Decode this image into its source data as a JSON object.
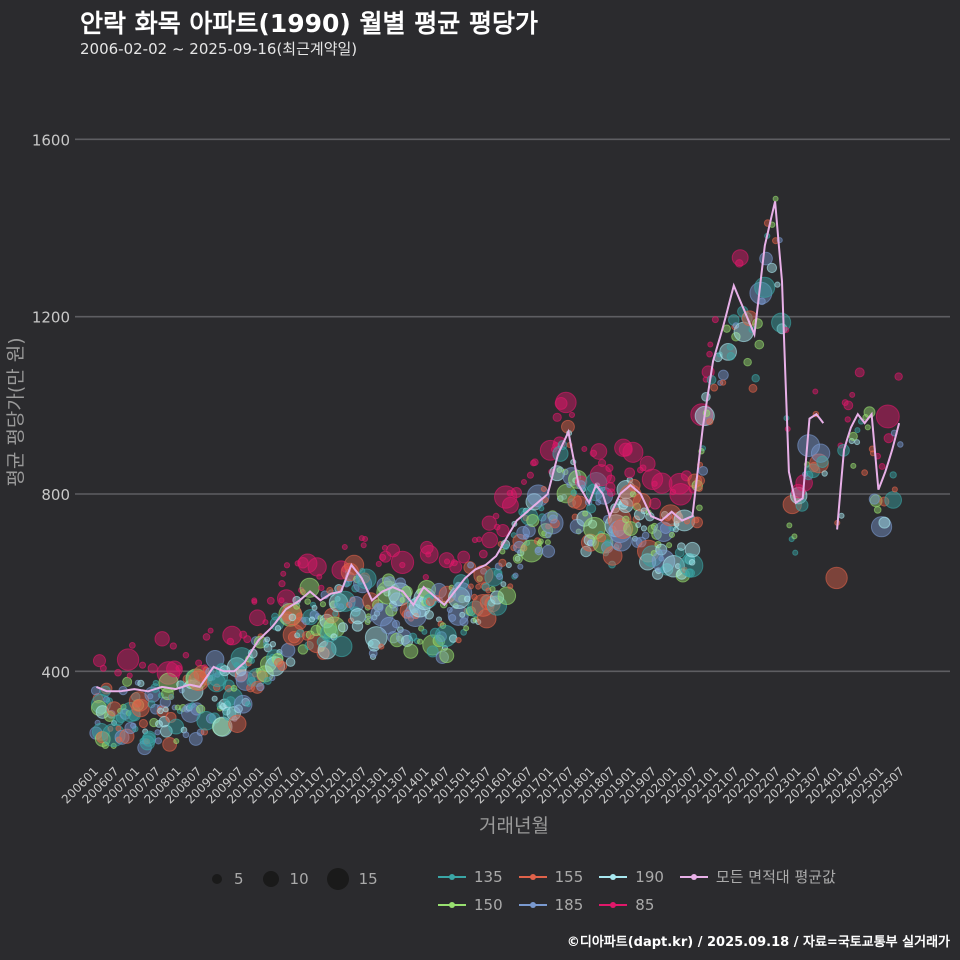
{
  "title": "안락 화목 아파트(1990) 월별 평균 평당가",
  "subtitle": "2006-02-02 ~ 2025-09-16(최근계약일)",
  "caption": "©디아파트(dapt.kr) / 2025.09.18 / 자료=국토교통부 실거래가",
  "size_legend": [
    {
      "label": "5",
      "value": 5
    },
    {
      "label": "10",
      "value": 10
    },
    {
      "label": "15",
      "value": 15
    }
  ],
  "color_legend": [
    {
      "label": "135",
      "color": "#3aa6a6"
    },
    {
      "label": "155",
      "color": "#e0624a"
    },
    {
      "label": "190",
      "color": "#a8e8f0"
    },
    {
      "label": "모든 면적대 평균값",
      "color": "#e8b0e8"
    },
    {
      "label": "150",
      "color": "#98e070"
    },
    {
      "label": "185",
      "color": "#7a9ad0"
    },
    {
      "label": "85",
      "color": "#e0186a"
    }
  ],
  "chart_data": {
    "type": "scatter+line",
    "title": "안락 화목 아파트(1990) 월별 평균 평당가",
    "xlabel": "거래년월",
    "ylabel": "평균 평당가(만 원)",
    "ylim": [
      200,
      1700
    ],
    "yticks": [
      400,
      800,
      1200,
      1600
    ],
    "x_start": "200601",
    "x_end": "202509",
    "x_tick_labels": [
      "200601",
      "200607",
      "200701",
      "200707",
      "200801",
      "200807",
      "200901",
      "200907",
      "201001",
      "201007",
      "201101",
      "201107",
      "201201",
      "201207",
      "201301",
      "201307",
      "201401",
      "201407",
      "201501",
      "201507",
      "201601",
      "201607",
      "201701",
      "201707",
      "201801",
      "201807",
      "201901",
      "201907",
      "202001",
      "202007",
      "202101",
      "202107",
      "202201",
      "202207",
      "202301",
      "202307",
      "202401",
      "202407",
      "202501",
      "202507"
    ],
    "line_series": {
      "name": "모든 면적대 평균값",
      "color": "#e8b0e8",
      "anchors": [
        [
          "200602",
          365
        ],
        [
          "200605",
          355
        ],
        [
          "200609",
          355
        ],
        [
          "200701",
          360
        ],
        [
          "200705",
          355
        ],
        [
          "200709",
          365
        ],
        [
          "200801",
          360
        ],
        [
          "200805",
          370
        ],
        [
          "200808",
          365
        ],
        [
          "200812",
          410
        ],
        [
          "200903",
          400
        ],
        [
          "200906",
          400
        ],
        [
          "200909",
          420
        ],
        [
          "201001",
          470
        ],
        [
          "201005",
          500
        ],
        [
          "201009",
          540
        ],
        [
          "201101",
          560
        ],
        [
          "201104",
          580
        ],
        [
          "201107",
          560
        ],
        [
          "201110",
          575
        ],
        [
          "201201",
          580
        ],
        [
          "201204",
          640
        ],
        [
          "201207",
          610
        ],
        [
          "201210",
          560
        ],
        [
          "201301",
          580
        ],
        [
          "201304",
          590
        ],
        [
          "201307",
          580
        ],
        [
          "201310",
          550
        ],
        [
          "201401",
          590
        ],
        [
          "201404",
          570
        ],
        [
          "201407",
          550
        ],
        [
          "201410",
          580
        ],
        [
          "201501",
          610
        ],
        [
          "201504",
          630
        ],
        [
          "201507",
          640
        ],
        [
          "201510",
          660
        ],
        [
          "201601",
          700
        ],
        [
          "201604",
          740
        ],
        [
          "201607",
          760
        ],
        [
          "201610",
          780
        ],
        [
          "201701",
          800
        ],
        [
          "201704",
          890
        ],
        [
          "201707",
          940
        ],
        [
          "201710",
          820
        ],
        [
          "201801",
          780
        ],
        [
          "201803",
          820
        ],
        [
          "201805",
          800
        ],
        [
          "201807",
          750
        ],
        [
          "201810",
          800
        ],
        [
          "201901",
          820
        ],
        [
          "201904",
          800
        ],
        [
          "201907",
          750
        ],
        [
          "201910",
          740
        ],
        [
          "202001",
          760
        ],
        [
          "202004",
          740
        ],
        [
          "202007",
          750
        ],
        [
          "202010",
          950
        ],
        [
          "202101",
          1100
        ],
        [
          "202104",
          1180
        ],
        [
          "202107",
          1270
        ],
        [
          "202201",
          1160
        ],
        [
          "202204",
          1360
        ],
        [
          "202207",
          1460
        ],
        [
          "202209",
          1280
        ],
        [
          "202211",
          850
        ],
        [
          "202301",
          780
        ],
        [
          "202303",
          790
        ],
        [
          "202305",
          970
        ],
        [
          "202307",
          980
        ],
        [
          "202309",
          960
        ],
        [
          "202311",
          null
        ],
        [
          "202401",
          720
        ],
        [
          "202403",
          900
        ],
        [
          "202405",
          950
        ],
        [
          "202407",
          980
        ],
        [
          "202409",
          960
        ],
        [
          "202411",
          980
        ],
        [
          "202501",
          810
        ],
        [
          "202503",
          850
        ],
        [
          "202505",
          900
        ],
        [
          "202507",
          960
        ]
      ]
    },
    "scatter_series": [
      {
        "name": "85",
        "color": "#e0186a"
      },
      {
        "name": "135",
        "color": "#3aa6a6"
      },
      {
        "name": "150",
        "color": "#98e070"
      },
      {
        "name": "155",
        "color": "#e0624a"
      },
      {
        "name": "185",
        "color": "#7a9ad0"
      },
      {
        "name": "190",
        "color": "#a8e8f0"
      }
    ]
  }
}
